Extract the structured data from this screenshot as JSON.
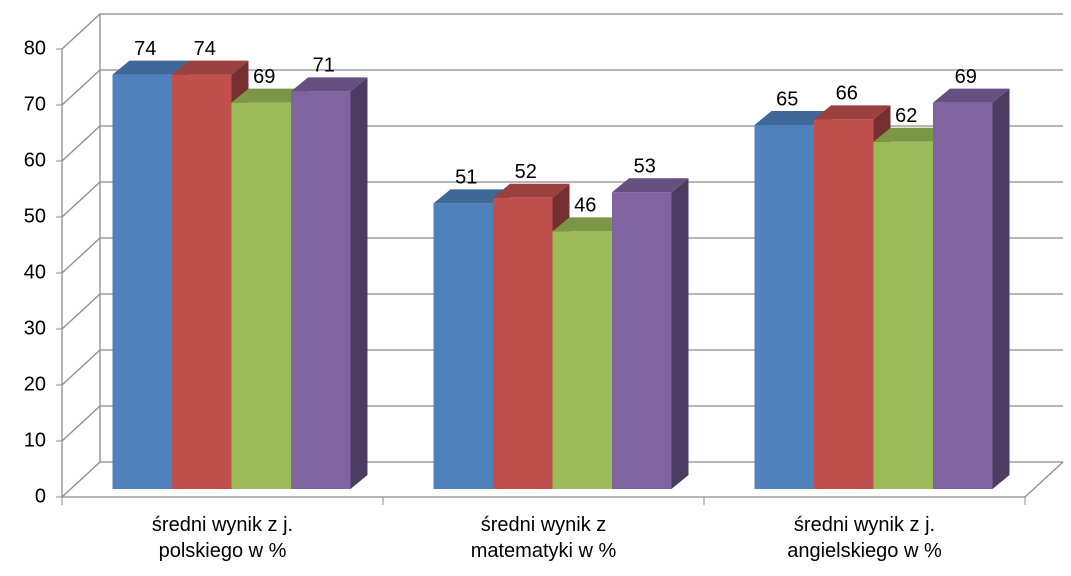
{
  "chart_data": {
    "type": "bar3d",
    "categories": [
      "średni wynik z j. polskiego w %",
      "średni wynik z matematyki w %",
      "średni wynik z j. angielskiego w %"
    ],
    "series": [
      {
        "color": "#4f81bd",
        "values": [
          74,
          51,
          65
        ]
      },
      {
        "color": "#c0504d",
        "values": [
          74,
          52,
          66
        ]
      },
      {
        "color": "#9bbb59",
        "values": [
          69,
          46,
          62
        ]
      },
      {
        "color": "#8064a2",
        "values": [
          71,
          53,
          69
        ]
      }
    ],
    "ylim": [
      0,
      80
    ],
    "yticks": [
      0,
      10,
      20,
      30,
      40,
      50,
      60,
      70,
      80
    ],
    "grid": true
  }
}
